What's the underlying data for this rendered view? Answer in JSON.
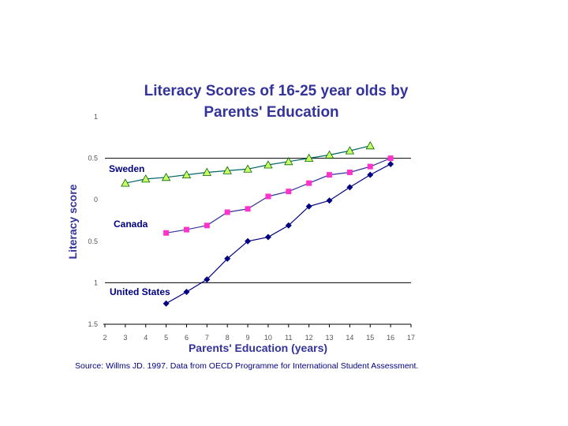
{
  "chart_data": {
    "type": "line",
    "title_lines": [
      "Literacy Scores of 16-25 year olds  by",
      "Parents' Education"
    ],
    "xlabel": "Parents' Education (years)",
    "ylabel": "Literacy score",
    "xlim": [
      2,
      17
    ],
    "ylim": [
      -1.5,
      1
    ],
    "x_ticks": [
      "2",
      "3",
      "4",
      "5",
      "6",
      "7",
      "8",
      "9",
      "10",
      "11",
      "12",
      "13",
      "14",
      "15",
      "16",
      "17"
    ],
    "y_ticks": [
      {
        "value": 1,
        "label": "1"
      },
      {
        "value": 0.5,
        "label": "0.5"
      },
      {
        "value": 0,
        "label": "0"
      },
      {
        "value": -0.5,
        "label": "0.5"
      },
      {
        "value": -1,
        "label": "1"
      },
      {
        "value": -1.5,
        "label": "1.5"
      }
    ],
    "gridlines_y": [
      0.5,
      -1
    ],
    "series": [
      {
        "name": "Sweden",
        "color": "#CCFF66",
        "stroke": "#006600",
        "line_color": "#006666",
        "marker": "triangle",
        "x": [
          3,
          4,
          5,
          6,
          7,
          8,
          9,
          10,
          11,
          12,
          13,
          14,
          15
        ],
        "y": [
          0.2,
          0.25,
          0.27,
          0.3,
          0.33,
          0.35,
          0.37,
          0.42,
          0.46,
          0.5,
          0.54,
          0.59,
          0.65
        ]
      },
      {
        "name": "Canada",
        "color": "#FF33CC",
        "stroke": "#FF33CC",
        "line_color": "#333399",
        "marker": "square",
        "x": [
          5,
          6,
          7,
          8,
          9,
          10,
          11,
          12,
          13,
          14,
          15,
          16
        ],
        "y": [
          -0.4,
          -0.36,
          -0.31,
          -0.15,
          -0.11,
          0.04,
          0.1,
          0.2,
          0.3,
          0.33,
          0.4,
          0.5
        ]
      },
      {
        "name": "United States",
        "color": "#000080",
        "stroke": "#000080",
        "line_color": "#000080",
        "marker": "diamond",
        "x": [
          5,
          6,
          7,
          8,
          9,
          10,
          11,
          12,
          13,
          14,
          15,
          16
        ],
        "y": [
          -1.25,
          -1.11,
          -0.96,
          -0.71,
          -0.5,
          -0.45,
          -0.31,
          -0.08,
          -0.01,
          0.15,
          0.3,
          0.43
        ]
      }
    ],
    "grid": false,
    "legend": "inline labels"
  },
  "labels": {
    "sweden": "Sweden",
    "canada": "Canada",
    "us": "United States"
  },
  "source": "Source:  Willms JD. 1997. Data from OECD Programme for International Student Assessment."
}
